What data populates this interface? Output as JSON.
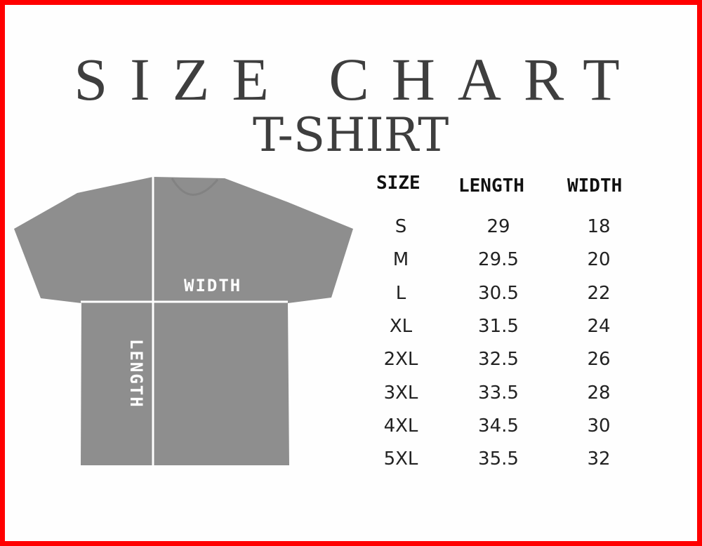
{
  "title": "SIZE CHART",
  "subtitle": "T-SHIRT",
  "colors": {
    "border": "#ff0000",
    "shirt": "#8e8e8e",
    "text": "#3e3e3e"
  },
  "diagram": {
    "width_label": "WIDTH",
    "length_label": "LENGTH"
  },
  "table": {
    "headers": [
      "SIZE",
      "LENGTH",
      "WIDTH"
    ],
    "rows": [
      [
        "S",
        "29",
        "18"
      ],
      [
        "M",
        "29.5",
        "20"
      ],
      [
        "L",
        "30.5",
        "22"
      ],
      [
        "XL",
        "31.5",
        "24"
      ],
      [
        "2XL",
        "32.5",
        "26"
      ],
      [
        "3XL",
        "33.5",
        "28"
      ],
      [
        "4XL",
        "34.5",
        "30"
      ],
      [
        "5XL",
        "35.5",
        "32"
      ]
    ]
  }
}
